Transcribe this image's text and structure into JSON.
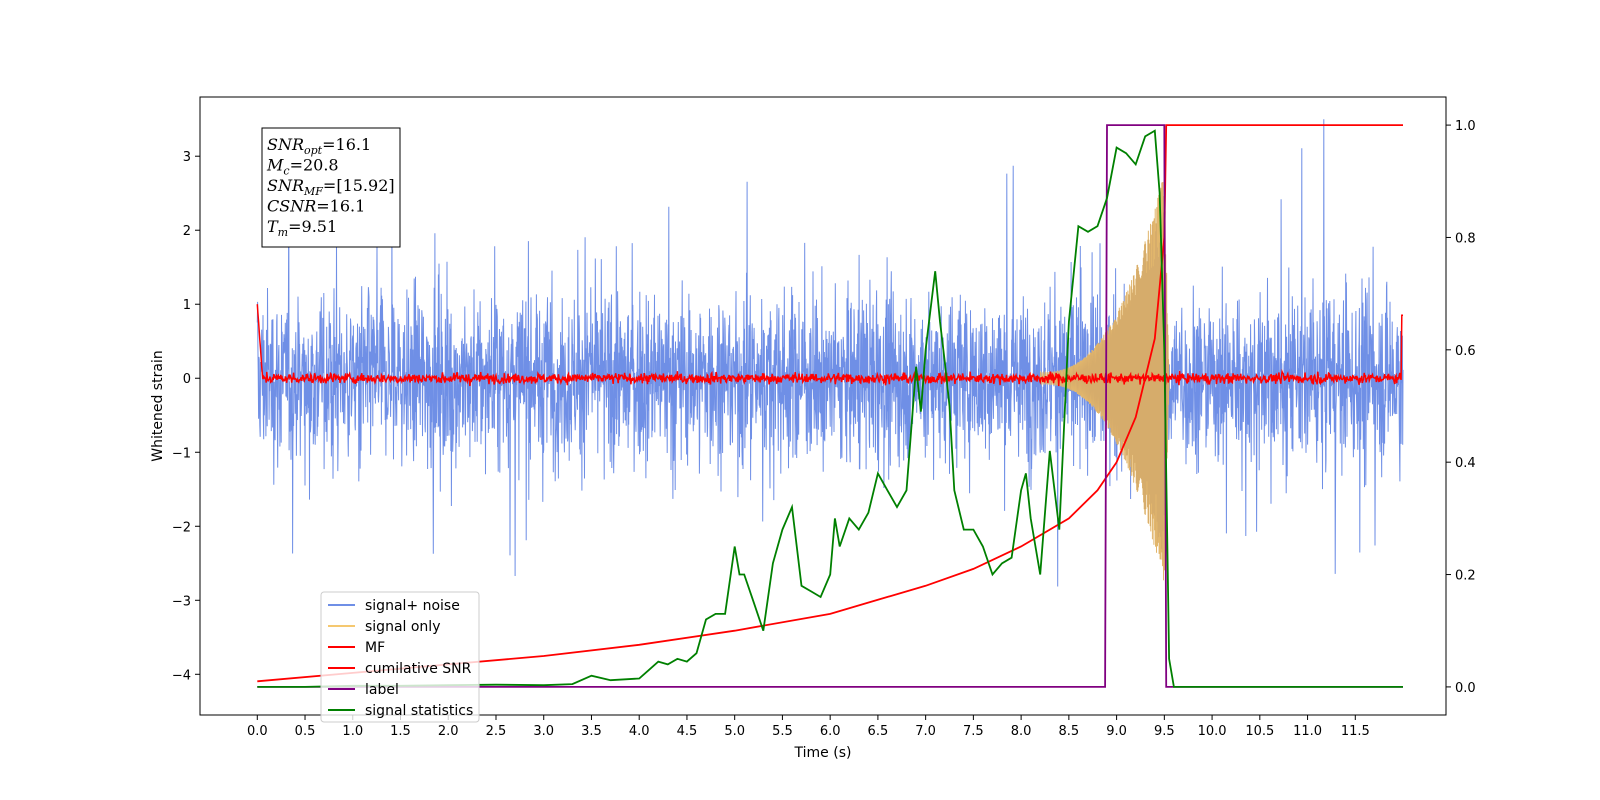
{
  "chart_data": {
    "type": "line",
    "xlabel": "Time (s)",
    "ylabel": "Whitened strain",
    "xlim": [
      -0.6,
      12.45
    ],
    "ylim": [
      -4.55,
      3.8
    ],
    "y2lim": [
      -0.05,
      1.05
    ],
    "xticks": [
      "0.0",
      "0.5",
      "1.0",
      "1.5",
      "2.0",
      "2.5",
      "3.0",
      "3.5",
      "4.0",
      "4.5",
      "5.0",
      "5.5",
      "6.0",
      "6.5",
      "7.0",
      "7.5",
      "8.0",
      "8.5",
      "9.0",
      "9.5",
      "10.0",
      "10.5",
      "11.0",
      "11.5"
    ],
    "yticks": [
      "3",
      "2",
      "1",
      "0",
      "−1",
      "−2",
      "−3",
      "−4"
    ],
    "y2ticks": [
      "1.0",
      "0.8",
      "0.6",
      "0.4",
      "0.2",
      "0.0"
    ],
    "colors": {
      "signal_noise": "#6f8fe6",
      "signal_only": "#f5c870",
      "mf": "#ff0000",
      "cumulative_snr": "#ff0000",
      "label": "#800080",
      "signal_statistics": "#008000"
    },
    "annotation": [
      {
        "base": "SNR",
        "sub": "opt",
        "value": "=16.1"
      },
      {
        "base": "M",
        "sub": "c",
        "value": "=20.8"
      },
      {
        "base": "SNR",
        "sub": "MF",
        "value": "=[15.92]"
      },
      {
        "base": "CSNR",
        "sub": "",
        "value": "=16.1"
      },
      {
        "base": "T",
        "sub": "m",
        "value": "=9.51"
      }
    ],
    "legend": {
      "placement": "lower-left",
      "entries": [
        "signal+ noise",
        "signal only",
        "MF",
        "cumilative SNR",
        "label",
        "signal statistics"
      ]
    },
    "series": [
      {
        "name": "signal+ noise",
        "axis": "left",
        "description_of_shape": "dense noise band about ±1.5 with spikes up to ±3.5 across 0–12 s"
      },
      {
        "name": "signal only",
        "axis": "left",
        "description_of_shape": "chirp amplitude growing from ~0 near 8.3 s to ~2.8 near 9.5 s, then drops to 0"
      },
      {
        "name": "MF",
        "axis": "left",
        "description_of_shape": "near-zero red noise band about ±0.15, edges at 0 s and 12 s reach ~1"
      },
      {
        "name": "cumilative SNR",
        "axis": "right",
        "x": [
          0.0,
          1.0,
          2.0,
          3.0,
          4.0,
          5.0,
          6.0,
          6.5,
          7.0,
          7.5,
          8.0,
          8.5,
          8.8,
          9.0,
          9.2,
          9.4,
          9.5,
          9.52,
          12.0
        ],
        "y": [
          0.01,
          0.025,
          0.04,
          0.055,
          0.075,
          0.1,
          0.13,
          0.155,
          0.18,
          0.21,
          0.25,
          0.3,
          0.35,
          0.4,
          0.48,
          0.62,
          0.8,
          1.0,
          1.0
        ]
      },
      {
        "name": "label",
        "axis": "right",
        "x": [
          0.0,
          8.88,
          8.9,
          9.47,
          9.5,
          9.52,
          12.0
        ],
        "y": [
          0.0,
          0.0,
          1.0,
          1.0,
          1.0,
          0.0,
          0.0
        ]
      },
      {
        "name": "signal statistics",
        "axis": "right",
        "x": [
          0.0,
          0.5,
          1.0,
          1.5,
          2.0,
          2.5,
          3.0,
          3.3,
          3.5,
          3.7,
          4.0,
          4.1,
          4.2,
          4.3,
          4.4,
          4.5,
          4.6,
          4.7,
          4.8,
          4.9,
          5.0,
          5.05,
          5.1,
          5.2,
          5.3,
          5.4,
          5.5,
          5.6,
          5.7,
          5.8,
          5.9,
          6.0,
          6.05,
          6.1,
          6.2,
          6.3,
          6.4,
          6.5,
          6.6,
          6.7,
          6.8,
          6.9,
          6.95,
          7.0,
          7.1,
          7.15,
          7.2,
          7.25,
          7.3,
          7.4,
          7.5,
          7.6,
          7.7,
          7.8,
          7.9,
          8.0,
          8.05,
          8.1,
          8.2,
          8.3,
          8.4,
          8.5,
          8.6,
          8.7,
          8.8,
          8.9,
          9.0,
          9.1,
          9.2,
          9.3,
          9.4,
          9.45,
          9.5,
          9.55,
          9.6,
          12.0
        ],
        "y": [
          0.0,
          0.0,
          0.002,
          0.002,
          0.003,
          0.004,
          0.003,
          0.005,
          0.02,
          0.012,
          0.015,
          0.03,
          0.045,
          0.04,
          0.05,
          0.045,
          0.06,
          0.12,
          0.13,
          0.13,
          0.25,
          0.2,
          0.2,
          0.15,
          0.1,
          0.22,
          0.28,
          0.32,
          0.18,
          0.17,
          0.16,
          0.2,
          0.3,
          0.25,
          0.3,
          0.28,
          0.31,
          0.38,
          0.35,
          0.32,
          0.35,
          0.57,
          0.49,
          0.6,
          0.74,
          0.65,
          0.58,
          0.5,
          0.35,
          0.28,
          0.28,
          0.25,
          0.2,
          0.22,
          0.23,
          0.35,
          0.38,
          0.3,
          0.2,
          0.42,
          0.28,
          0.65,
          0.82,
          0.81,
          0.82,
          0.87,
          0.96,
          0.95,
          0.93,
          0.98,
          0.99,
          0.88,
          0.6,
          0.05,
          0.0,
          0.0
        ]
      }
    ]
  }
}
